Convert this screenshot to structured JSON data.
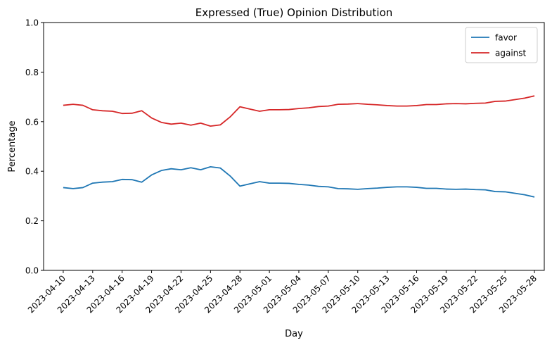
{
  "chart_data": {
    "type": "line",
    "title": "Expressed (True) Opinion Distribution",
    "xlabel": "Day",
    "ylabel": "Percentage",
    "ylim": [
      0.0,
      1.0
    ],
    "yticks": [
      0.0,
      0.2,
      0.4,
      0.6,
      0.8,
      1.0
    ],
    "yticklabels": [
      "0.0",
      "0.2",
      "0.4",
      "0.6",
      "0.8",
      "1.0"
    ],
    "xlim": [
      "2023-04-08",
      "2023-05-29"
    ],
    "xticks": [
      "2023-04-10",
      "2023-04-13",
      "2023-04-16",
      "2023-04-19",
      "2023-04-22",
      "2023-04-25",
      "2023-04-28",
      "2023-05-01",
      "2023-05-04",
      "2023-05-07",
      "2023-05-10",
      "2023-05-13",
      "2023-05-16",
      "2023-05-19",
      "2023-05-22",
      "2023-05-25",
      "2023-05-28"
    ],
    "legend": {
      "position": "top-right"
    },
    "grid": false,
    "x": [
      "2023-04-10",
      "2023-04-11",
      "2023-04-12",
      "2023-04-13",
      "2023-04-14",
      "2023-04-15",
      "2023-04-16",
      "2023-04-17",
      "2023-04-18",
      "2023-04-19",
      "2023-04-20",
      "2023-04-21",
      "2023-04-22",
      "2023-04-23",
      "2023-04-24",
      "2023-04-25",
      "2023-04-26",
      "2023-04-27",
      "2023-04-28",
      "2023-04-29",
      "2023-04-30",
      "2023-05-01",
      "2023-05-02",
      "2023-05-03",
      "2023-05-04",
      "2023-05-05",
      "2023-05-06",
      "2023-05-07",
      "2023-05-08",
      "2023-05-09",
      "2023-05-10",
      "2023-05-11",
      "2023-05-12",
      "2023-05-13",
      "2023-05-14",
      "2023-05-15",
      "2023-05-16",
      "2023-05-17",
      "2023-05-18",
      "2023-05-19",
      "2023-05-20",
      "2023-05-21",
      "2023-05-22",
      "2023-05-23",
      "2023-05-24",
      "2023-05-25",
      "2023-05-26",
      "2023-05-27",
      "2023-05-28"
    ],
    "series": [
      {
        "name": "favor",
        "color": "#1f77b4",
        "values": [
          0.334,
          0.33,
          0.334,
          0.352,
          0.356,
          0.358,
          0.367,
          0.366,
          0.356,
          0.385,
          0.403,
          0.41,
          0.406,
          0.414,
          0.406,
          0.418,
          0.413,
          0.381,
          0.34,
          0.349,
          0.358,
          0.352,
          0.352,
          0.351,
          0.347,
          0.344,
          0.339,
          0.337,
          0.33,
          0.329,
          0.327,
          0.33,
          0.332,
          0.335,
          0.337,
          0.337,
          0.335,
          0.331,
          0.331,
          0.328,
          0.327,
          0.328,
          0.326,
          0.325,
          0.318,
          0.317,
          0.311,
          0.305,
          0.296
        ]
      },
      {
        "name": "against",
        "color": "#d62728",
        "values": [
          0.666,
          0.67,
          0.666,
          0.648,
          0.644,
          0.642,
          0.633,
          0.634,
          0.644,
          0.615,
          0.597,
          0.59,
          0.594,
          0.586,
          0.594,
          0.582,
          0.587,
          0.619,
          0.66,
          0.651,
          0.642,
          0.648,
          0.648,
          0.649,
          0.653,
          0.656,
          0.661,
          0.663,
          0.67,
          0.671,
          0.673,
          0.67,
          0.668,
          0.665,
          0.663,
          0.663,
          0.665,
          0.669,
          0.669,
          0.672,
          0.673,
          0.672,
          0.674,
          0.675,
          0.682,
          0.683,
          0.689,
          0.695,
          0.704
        ]
      }
    ]
  }
}
